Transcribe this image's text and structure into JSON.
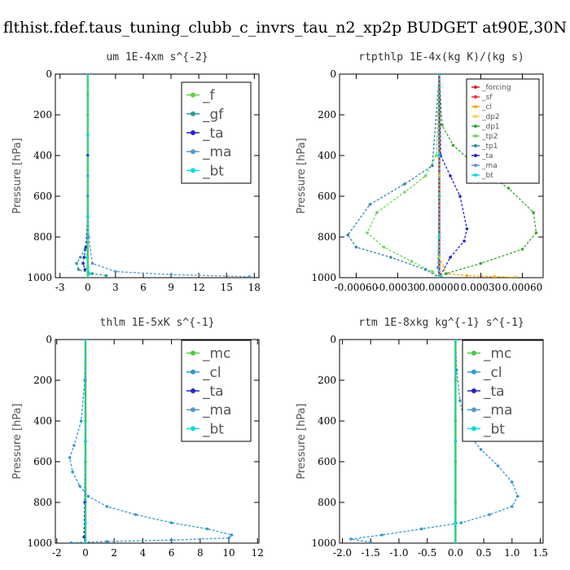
{
  "title": "flthist.fdef.taus_tuning_clubb_c_invrs_tau_n2_xp2p  BUDGET at90E,30N",
  "colors": {
    "f": "#66cc44",
    "gf": "#339999",
    "ta": "#2222cc",
    "ma": "#5599cc",
    "bt": "#00dddd",
    "forcing": "#cc2222",
    "sf": "#ee3333",
    "cl": "#ffaa00",
    "dp2": "#ffcc44",
    "dp1": "#33aa33",
    "tp2": "#66dd55",
    "tp1": "#3388aa",
    "mc": "#44cc44",
    "cl2": "#3399cc"
  },
  "chart_data": [
    {
      "type": "line",
      "title": "um  1E-4xm s^{-2}",
      "ylabel": "Pressure [hPa]",
      "xlim": [
        -3.5,
        18.5
      ],
      "ylim": [
        1000,
        0
      ],
      "xticks": [
        -3,
        0,
        3,
        6,
        9,
        12,
        15,
        18
      ],
      "yticks": [
        0,
        200,
        400,
        600,
        800,
        1000
      ],
      "legend_size": "large",
      "series": [
        {
          "name": "_f",
          "color": "#66cc44",
          "x": [
            0,
            0,
            0,
            0,
            0,
            0,
            0,
            0,
            0,
            0,
            0
          ],
          "y": [
            0,
            100,
            200,
            300,
            400,
            500,
            600,
            700,
            800,
            900,
            1000
          ]
        },
        {
          "name": "_gf",
          "color": "#339999",
          "x": [
            0,
            0,
            0,
            0,
            -0.3,
            -0.8,
            -1.2,
            -1.0,
            0.5,
            2.0
          ],
          "y": [
            0,
            300,
            600,
            800,
            860,
            900,
            930,
            960,
            980,
            990
          ]
        },
        {
          "name": "_ta",
          "color": "#2222cc",
          "x": [
            0,
            0,
            0,
            -0.2,
            -0.4,
            -0.5,
            -0.3
          ],
          "y": [
            0,
            400,
            700,
            850,
            900,
            930,
            960
          ]
        },
        {
          "name": "_ma",
          "color": "#5599cc",
          "x": [
            0,
            0,
            0.1,
            0.5,
            3,
            9,
            17.5
          ],
          "y": [
            0,
            500,
            800,
            930,
            970,
            985,
            995
          ]
        },
        {
          "name": "_bt",
          "color": "#00dddd",
          "x": [
            0,
            0,
            0,
            -0.1,
            0,
            0.2,
            0
          ],
          "y": [
            0,
            300,
            700,
            900,
            950,
            980,
            1000
          ]
        }
      ]
    },
    {
      "type": "line",
      "title": "rtpthlp  1E-4x(kg K)/(kg s)",
      "ylabel": "Pressure [hPa]",
      "xlim": [
        -0.00072,
        0.00075
      ],
      "ylim": [
        1000,
        0
      ],
      "xticks": [
        -0.0006,
        -0.0003,
        0.0,
        0.0003,
        0.0006
      ],
      "xticklabels": [
        "-0.00060",
        "-0.00030",
        "0.00000",
        "0.00030",
        "0.00060"
      ],
      "yticks": [
        0,
        200,
        400,
        600,
        800,
        1000
      ],
      "legend_size": "small",
      "series": [
        {
          "name": "_forcing",
          "color": "#cc2222",
          "x": [
            0,
            0,
            0,
            0,
            0,
            0
          ],
          "y": [
            0,
            200,
            400,
            600,
            800,
            1000
          ]
        },
        {
          "name": "_sf",
          "color": "#ee3333",
          "x": [
            0,
            0,
            0,
            0,
            0,
            0
          ],
          "y": [
            0,
            200,
            400,
            600,
            800,
            1000
          ]
        },
        {
          "name": "_cl",
          "color": "#ffaa00",
          "x": [
            0,
            0,
            0,
            5e-05,
            0.0002,
            0.0004,
            0.00055
          ],
          "y": [
            0,
            600,
            900,
            980,
            990,
            995,
            998
          ]
        },
        {
          "name": "_dp2",
          "color": "#ffcc44",
          "x": [
            0,
            0,
            0,
            0
          ],
          "y": [
            0,
            500,
            900,
            1000
          ]
        },
        {
          "name": "_dp1",
          "color": "#33aa33",
          "x": [
            0,
            2e-05,
            0.0001,
            0.0003,
            0.0005,
            0.00068,
            0.0007,
            0.0006,
            0.0003,
            5e-05,
            0
          ],
          "y": [
            0,
            250,
            350,
            470,
            560,
            680,
            780,
            860,
            930,
            980,
            1000
          ]
        },
        {
          "name": "_tp2",
          "color": "#66dd55",
          "x": [
            0,
            -2e-05,
            -0.0001,
            -0.00025,
            -0.00045,
            -0.00052,
            -0.0004,
            -0.0002,
            -5e-05,
            0
          ],
          "y": [
            0,
            400,
            500,
            580,
            680,
            780,
            850,
            920,
            970,
            1000
          ]
        },
        {
          "name": "_tp1",
          "color": "#3388aa",
          "x": [
            0,
            -5e-05,
            -0.00025,
            -0.0005,
            -0.00066,
            -0.0006,
            -0.00035,
            -0.0001,
            0
          ],
          "y": [
            0,
            450,
            540,
            640,
            790,
            850,
            900,
            960,
            1000
          ]
        },
        {
          "name": "_ta",
          "color": "#2222cc",
          "x": [
            0,
            1e-05,
            8e-05,
            0.00015,
            0.0002,
            0.00018,
            8e-05,
            0
          ],
          "y": [
            0,
            400,
            500,
            600,
            760,
            820,
            900,
            1000
          ]
        },
        {
          "name": "_ma",
          "color": "#5599cc",
          "x": [
            0,
            0,
            -1e-05,
            0
          ],
          "y": [
            0,
            600,
            950,
            1000
          ]
        },
        {
          "name": "_bt",
          "color": "#00dddd",
          "x": [
            0,
            0,
            0,
            0
          ],
          "y": [
            0,
            400,
            800,
            1000
          ]
        }
      ]
    },
    {
      "type": "line",
      "title": "thlm  1E-5xK s^{-1}",
      "ylabel": "Pressure [hPa]",
      "xlim": [
        -2.1,
        12.1
      ],
      "ylim": [
        1000,
        0
      ],
      "xticks": [
        -2,
        0,
        2,
        4,
        6,
        8,
        10,
        12
      ],
      "yticks": [
        0,
        200,
        400,
        600,
        800,
        1000
      ],
      "legend_size": "large",
      "series": [
        {
          "name": "_mc",
          "color": "#44cc44",
          "x": [
            0,
            0,
            0,
            0,
            0,
            0
          ],
          "y": [
            0,
            200,
            400,
            600,
            800,
            1000
          ]
        },
        {
          "name": "_cl",
          "color": "#3399cc",
          "x": [
            0,
            -0.05,
            -0.3,
            -0.8,
            -1.1,
            -0.9,
            -0.4,
            0.2,
            1.5,
            3.5,
            6.0,
            8.5,
            10.2,
            10.0,
            6.0,
            1.5,
            -1.0
          ],
          "y": [
            0,
            200,
            400,
            520,
            580,
            650,
            720,
            770,
            820,
            860,
            900,
            930,
            960,
            975,
            985,
            992,
            998
          ]
        },
        {
          "name": "_ta",
          "color": "#2222cc",
          "x": [
            0,
            0,
            -0.05,
            -0.1,
            0
          ],
          "y": [
            0,
            500,
            800,
            970,
            1000
          ]
        },
        {
          "name": "_ma",
          "color": "#5599cc",
          "x": [
            0,
            0,
            0,
            0
          ],
          "y": [
            0,
            500,
            900,
            1000
          ]
        },
        {
          "name": "_bt",
          "color": "#00dddd",
          "x": [
            0,
            0,
            0,
            0
          ],
          "y": [
            0,
            500,
            900,
            1000
          ]
        }
      ]
    },
    {
      "type": "line",
      "title": "rtm  1E-8xkg kg^{-1} s^{-1}",
      "ylabel": "Pressure [hPa]",
      "xlim": [
        -2.05,
        1.55
      ],
      "ylim": [
        1000,
        0
      ],
      "xticks": [
        -2.0,
        -1.5,
        -1.0,
        -0.5,
        0.0,
        0.5,
        1.0,
        1.5
      ],
      "xticklabels": [
        "-2.0",
        "-1.5",
        "-1.0",
        "-0.5",
        "0.0",
        "0.5",
        "1.0",
        "1.5"
      ],
      "yticks": [
        0,
        200,
        400,
        600,
        800,
        1000
      ],
      "legend_size": "large",
      "series": [
        {
          "name": "_mc",
          "color": "#44cc44",
          "x": [
            0,
            0,
            0,
            0,
            0,
            0
          ],
          "y": [
            0,
            200,
            400,
            600,
            800,
            1000
          ]
        },
        {
          "name": "_cl",
          "color": "#3399cc",
          "x": [
            0,
            0.02,
            0.08,
            0.15,
            0.25,
            0.45,
            0.75,
            1.0,
            1.1,
            1.0,
            0.6,
            0.1,
            -0.6,
            -1.3,
            -1.85,
            -1.5
          ],
          "y": [
            0,
            150,
            300,
            400,
            470,
            540,
            620,
            700,
            770,
            820,
            860,
            900,
            930,
            960,
            980,
            995
          ]
        },
        {
          "name": "_ta",
          "color": "#2222cc",
          "x": [
            0,
            0,
            0,
            0
          ],
          "y": [
            0,
            500,
            900,
            1000
          ]
        },
        {
          "name": "_ma",
          "color": "#5599cc",
          "x": [
            0,
            0,
            0,
            0
          ],
          "y": [
            0,
            500,
            900,
            1000
          ]
        },
        {
          "name": "_bt",
          "color": "#00dddd",
          "x": [
            0,
            0,
            0,
            0
          ],
          "y": [
            0,
            500,
            900,
            1000
          ]
        }
      ]
    }
  ]
}
